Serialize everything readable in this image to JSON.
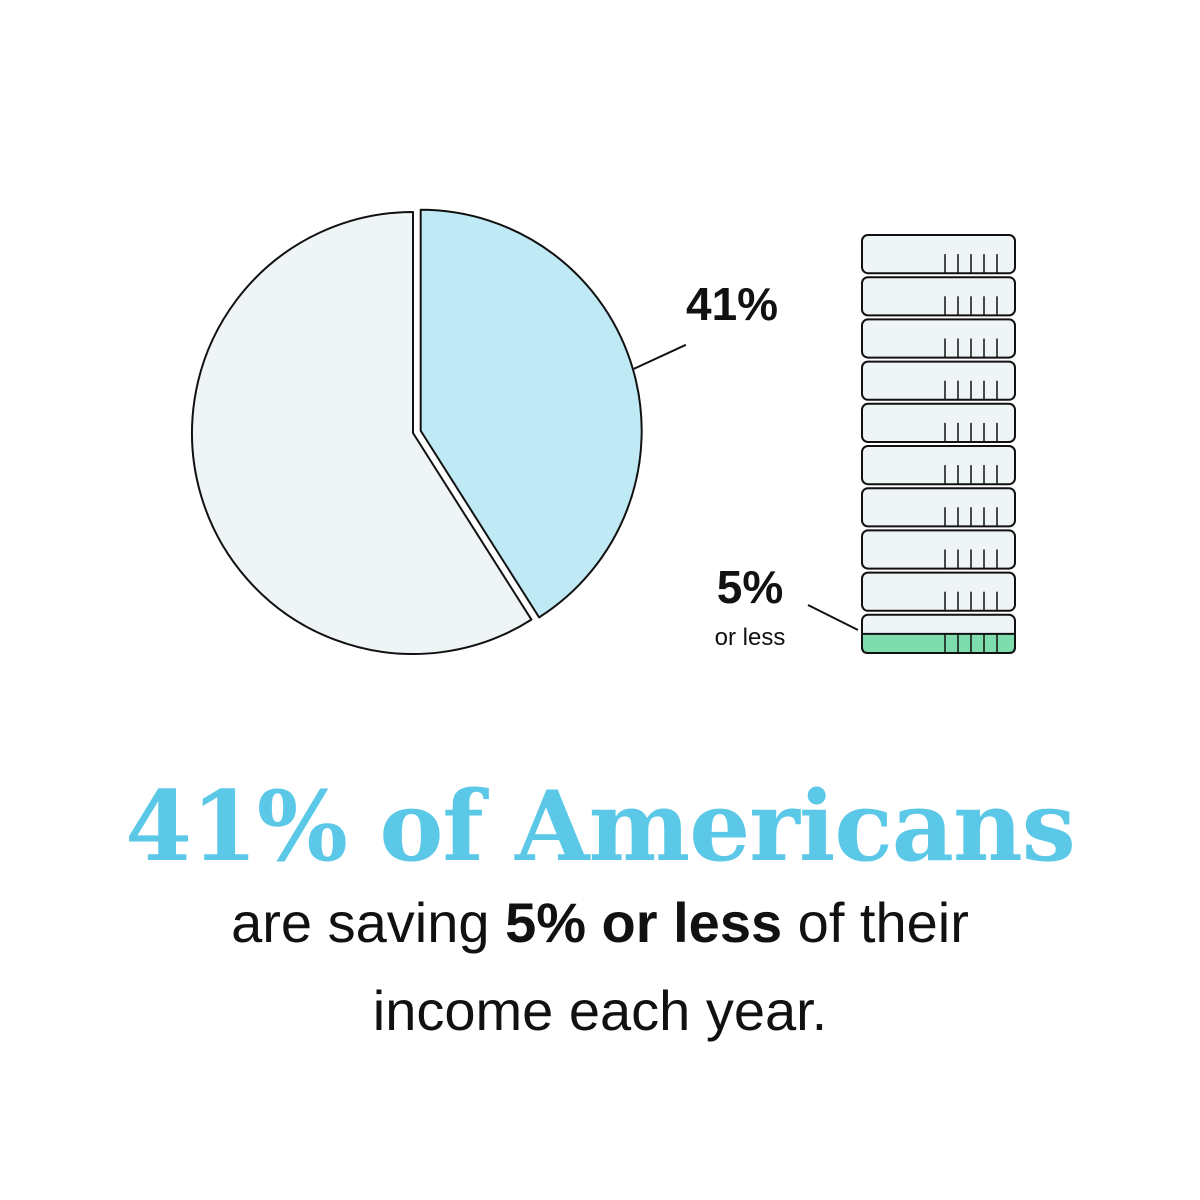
{
  "chart_data": [
    {
      "type": "pie",
      "values": [
        41,
        59
      ],
      "value_labels": [
        "41%",
        null
      ],
      "colors": [
        "#bfeaf5",
        "#eff4f7"
      ]
    },
    {
      "type": "stack",
      "values": [
        5
      ],
      "value_labels": [
        "5%"
      ],
      "sublabel": "or less",
      "ylim": [
        0,
        100
      ],
      "segments": 10,
      "color": "#7fdcad",
      "segment_color": "#eff4f7"
    }
  ],
  "headline": "41% of Americans",
  "body": {
    "line1": [
      "are saving",
      "5% or less",
      "of their"
    ],
    "line2": "income each year."
  }
}
